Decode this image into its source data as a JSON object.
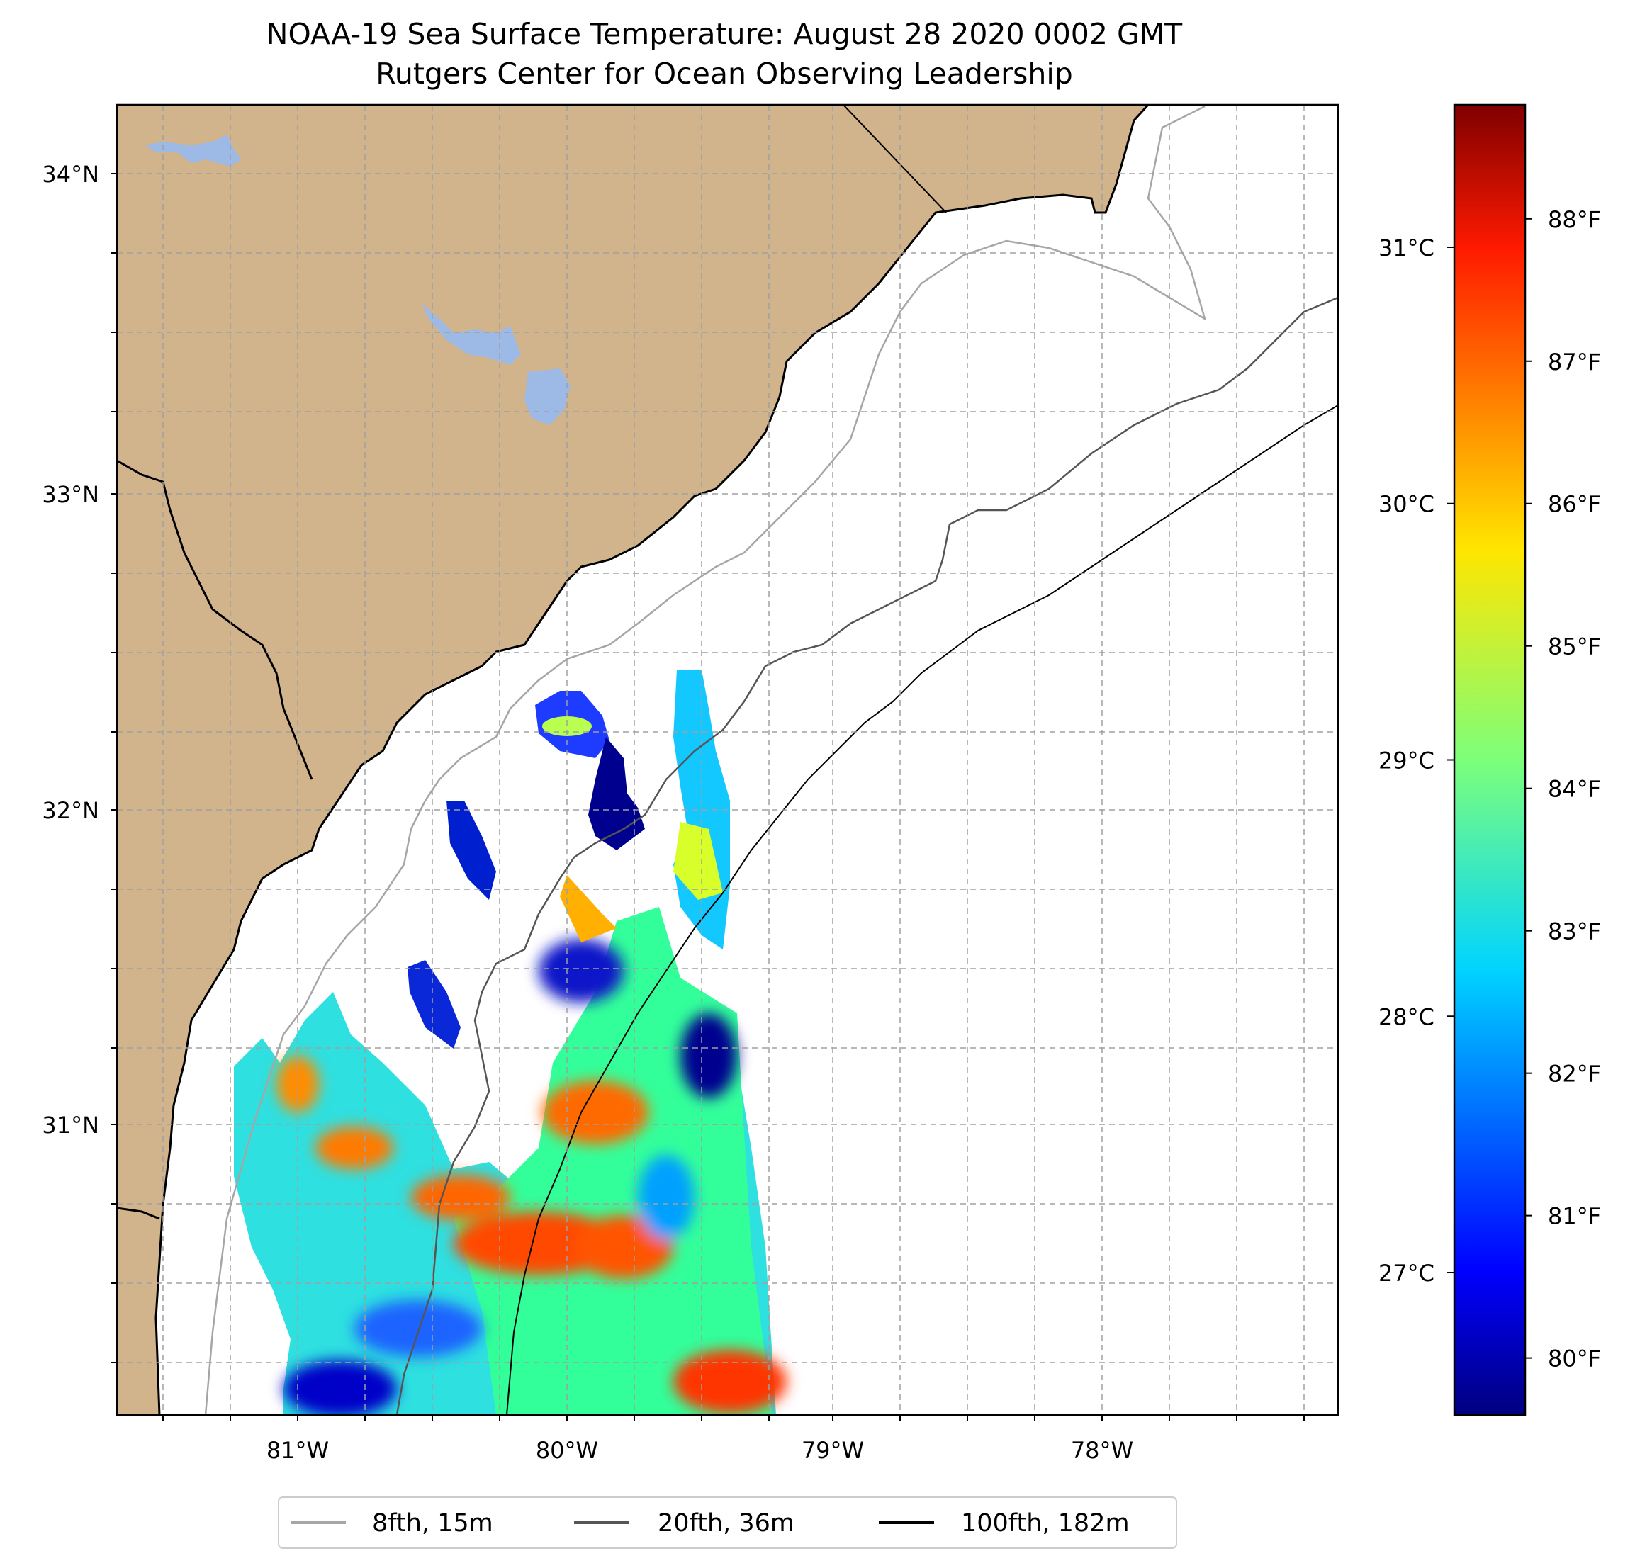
{
  "title": {
    "line1": "NOAA-19 Sea Surface Temperature: August 28 2020 0002 GMT",
    "line2": "Rutgers Center for Ocean Observing Leadership"
  },
  "map": {
    "lon_ticks": [
      "81°W",
      "80°W",
      "79°W",
      "78°W"
    ],
    "lat_ticks": [
      "34°N",
      "33°N",
      "32°N",
      "31°N"
    ],
    "lon_range": [
      -81.68,
      -77.12
    ],
    "lat_range": [
      30.07,
      34.22
    ],
    "land_color": "#d2b48c",
    "lake_color": "#9db9e5",
    "ocean_color": "#ffffff"
  },
  "colorbar": {
    "colormap": "jet",
    "celsius_ticks": [
      "31°C",
      "30°C",
      "29°C",
      "28°C",
      "27°C"
    ],
    "fahrenheit_ticks": [
      "88°F",
      "87°F",
      "86°F",
      "85°F",
      "84°F",
      "83°F",
      "82°F",
      "81°F",
      "80°F"
    ],
    "celsius_values": [
      31,
      30,
      29,
      28,
      27
    ],
    "fahrenheit_values": [
      88,
      87,
      86,
      85,
      84,
      83,
      82,
      81,
      80
    ],
    "range_f": [
      79.6,
      88.8
    ]
  },
  "legend": {
    "items": [
      {
        "label": "8fth, 15m",
        "color": "#a6a6a6"
      },
      {
        "label": "20fth, 36m",
        "color": "#555555"
      },
      {
        "label": "100fth, 182m",
        "color": "#000000"
      }
    ]
  },
  "sst_patches": [
    {
      "name": "sst-patch-southwest",
      "level": 0.45
    },
    {
      "name": "sst-patch-south-warm",
      "level": 0.8
    },
    {
      "name": "sst-patch-southeast-warm",
      "level": 0.85
    },
    {
      "name": "sst-patch-north-cool",
      "level": 0.05
    }
  ]
}
